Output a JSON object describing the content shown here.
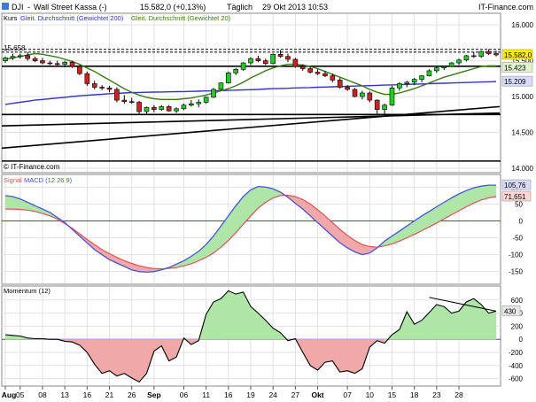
{
  "header": {
    "symbol": "DJI",
    "title": "Wall Street Kassa (-)",
    "quote": "15.582,0 (+0,13%)",
    "interval": "Täglich",
    "datetime": "29 Okt 2013 10:53",
    "provider": "IT-Finance.com"
  },
  "copyright": "© IT-Finance.com",
  "colors": {
    "bull": "#22cc22",
    "bear": "#cc2222",
    "ma20": "#3a7a12",
    "ma200": "#3333cc",
    "macd": "#4455dd",
    "signal": "#dd5555",
    "fill_pos": "#aee6a8",
    "fill_neg": "#f0a8a8",
    "badge_last": "#ffee00",
    "badge_ma20": "#dff5d0",
    "badge_ma200": "#d8ddff",
    "badge_macd": "#d8ddff",
    "badge_signal": "#ffd6d6",
    "badge_momentum": "#e8e8e8"
  },
  "chart_data": [
    {
      "type": "candlestick",
      "legend": [
        "Kurs",
        "Gleit. Durchschnitt (Gewichtet 200)",
        "Gleit. Durchschnitt (Gewichtet 20)"
      ],
      "ylim": [
        13950,
        16150
      ],
      "y_ticks": [
        14000,
        14500,
        15000,
        15500,
        16000
      ],
      "y_tick_labels": [
        "14.000",
        "14.500",
        "15.000",
        "15.500",
        "16.000"
      ],
      "x_tick_labels": [
        "Aug",
        "05",
        "08",
        "13",
        "16",
        "21",
        "26",
        "Sep",
        "06",
        "11",
        "16",
        "19",
        "24",
        "27",
        "Okt",
        "07",
        "10",
        "15",
        "18",
        "23",
        "28"
      ],
      "x_tick_index": [
        0,
        2,
        5,
        8,
        11,
        14,
        17,
        20,
        24,
        27,
        30,
        33,
        36,
        39,
        42,
        46,
        49,
        52,
        55,
        58,
        61
      ],
      "bold_tick_index": [
        0,
        20,
        42
      ],
      "ohlc": [
        [
          15500,
          15560,
          15470,
          15540
        ],
        [
          15540,
          15600,
          15510,
          15560
        ],
        [
          15560,
          15600,
          15530,
          15570
        ],
        [
          15570,
          15620,
          15500,
          15530
        ],
        [
          15530,
          15560,
          15480,
          15500
        ],
        [
          15500,
          15540,
          15450,
          15470
        ],
        [
          15470,
          15500,
          15440,
          15460
        ],
        [
          15460,
          15500,
          15420,
          15450
        ],
        [
          15450,
          15500,
          15410,
          15480
        ],
        [
          15480,
          15500,
          15400,
          15420
        ],
        [
          15420,
          15440,
          15300,
          15320
        ],
        [
          15320,
          15350,
          15150,
          15180
        ],
        [
          15180,
          15220,
          15100,
          15130
        ],
        [
          15130,
          15160,
          15090,
          15120
        ],
        [
          15120,
          15150,
          15060,
          15100
        ],
        [
          15100,
          15130,
          14920,
          14950
        ],
        [
          14950,
          15020,
          14900,
          14930
        ],
        [
          14930,
          14980,
          14900,
          14920
        ],
        [
          14920,
          14940,
          14760,
          14790
        ],
        [
          14790,
          14860,
          14750,
          14850
        ],
        [
          14850,
          14880,
          14780,
          14820
        ],
        [
          14820,
          14880,
          14800,
          14860
        ],
        [
          14860,
          14880,
          14790,
          14800
        ],
        [
          14800,
          14850,
          14770,
          14830
        ],
        [
          14830,
          14900,
          14810,
          14880
        ],
        [
          14880,
          14950,
          14860,
          14900
        ],
        [
          14900,
          14960,
          14850,
          14920
        ],
        [
          14920,
          15000,
          14900,
          14990
        ],
        [
          14990,
          15120,
          14980,
          15100
        ],
        [
          15100,
          15200,
          15080,
          15190
        ],
        [
          15190,
          15350,
          15180,
          15330
        ],
        [
          15330,
          15400,
          15300,
          15380
        ],
        [
          15380,
          15480,
          15360,
          15470
        ],
        [
          15470,
          15550,
          15440,
          15530
        ],
        [
          15530,
          15570,
          15480,
          15500
        ],
        [
          15500,
          15530,
          15440,
          15460
        ],
        [
          15460,
          15600,
          15450,
          15590
        ],
        [
          15590,
          15650,
          15540,
          15560
        ],
        [
          15560,
          15600,
          15480,
          15520
        ],
        [
          15520,
          15540,
          15400,
          15420
        ],
        [
          15420,
          15450,
          15360,
          15390
        ],
        [
          15390,
          15420,
          15320,
          15340
        ],
        [
          15340,
          15380,
          15300,
          15320
        ],
        [
          15320,
          15360,
          15270,
          15290
        ],
        [
          15290,
          15320,
          15200,
          15230
        ],
        [
          15230,
          15260,
          15110,
          15130
        ],
        [
          15130,
          15160,
          15080,
          15100
        ],
        [
          15100,
          15120,
          14990,
          15000
        ],
        [
          15000,
          15080,
          14960,
          15050
        ],
        [
          15050,
          15070,
          14920,
          14950
        ],
        [
          14950,
          14960,
          14750,
          14820
        ],
        [
          14820,
          14900,
          14720,
          14880
        ],
        [
          14880,
          15150,
          14870,
          15120
        ],
        [
          15120,
          15200,
          15080,
          15180
        ],
        [
          15180,
          15220,
          15130,
          15200
        ],
        [
          15200,
          15260,
          15160,
          15240
        ],
        [
          15240,
          15300,
          15200,
          15290
        ],
        [
          15290,
          15380,
          15280,
          15360
        ],
        [
          15360,
          15420,
          15330,
          15400
        ],
        [
          15400,
          15430,
          15370,
          15420
        ],
        [
          15420,
          15480,
          15410,
          15470
        ],
        [
          15470,
          15530,
          15440,
          15510
        ],
        [
          15510,
          15580,
          15490,
          15570
        ],
        [
          15570,
          15620,
          15540,
          15560
        ],
        [
          15560,
          15640,
          15540,
          15630
        ],
        [
          15630,
          15660,
          15580,
          15600
        ],
        [
          15600,
          15640,
          15560,
          15582
        ]
      ],
      "ma20": [
        15520,
        15540,
        15560,
        15580,
        15600,
        15590,
        15570,
        15550,
        15520,
        15490,
        15450,
        15400,
        15350,
        15290,
        15230,
        15170,
        15110,
        15060,
        15020,
        14990,
        14970,
        14960,
        14960,
        14960,
        14970,
        14980,
        15000,
        15020,
        15050,
        15080,
        15110,
        15150,
        15200,
        15260,
        15310,
        15360,
        15400,
        15430,
        15450,
        15450,
        15440,
        15420,
        15390,
        15350,
        15310,
        15270,
        15230,
        15190,
        15150,
        15100,
        15060,
        15030,
        15030,
        15050,
        15080,
        15110,
        15150,
        15190,
        15230,
        15270,
        15300,
        15330,
        15360,
        15390,
        15420,
        15430,
        15430
      ],
      "ma200": [
        14890,
        14905,
        14920,
        14935,
        14950,
        14960,
        14970,
        14980,
        14990,
        15000,
        15010,
        15018,
        15025,
        15032,
        15040,
        15045,
        15050,
        15055,
        15058,
        15060,
        15062,
        15064,
        15066,
        15068,
        15070,
        15072,
        15075,
        15078,
        15080,
        15083,
        15086,
        15090,
        15093,
        15096,
        15100,
        15105,
        15110,
        15113,
        15116,
        15120,
        15123,
        15126,
        15130,
        15133,
        15136,
        15140,
        15143,
        15146,
        15150,
        15153,
        15156,
        15160,
        15163,
        15166,
        15170,
        15173,
        15176,
        15180,
        15183,
        15186,
        15190,
        15193,
        15196,
        15200,
        15203,
        15206,
        15209
      ],
      "resistance_label": "15.658",
      "resistance": 15658,
      "horizontal_levels": [
        15658,
        15620,
        15423,
        14750,
        14100
      ],
      "trendlines": [
        [
          [
            0,
            14280
          ],
          [
            66,
            14860
          ]
        ],
        [
          [
            0,
            14590
          ],
          [
            66,
            14770
          ]
        ]
      ],
      "last_values": {
        "close": "15.582,0",
        "ma20": "15.423",
        "ma200": "15.209"
      }
    },
    {
      "type": "line",
      "legend": [
        "Signal",
        "MACD (12 26 9)"
      ],
      "ylim": [
        -185,
        135
      ],
      "y_ticks": [
        -150,
        -100,
        -50,
        0,
        50,
        100
      ],
      "y_tick_labels": [
        "-150",
        "-100",
        "-50",
        "0",
        "50",
        "100"
      ],
      "macd": [
        75,
        72,
        65,
        55,
        45,
        35,
        25,
        10,
        -5,
        -25,
        -45,
        -65,
        -85,
        -100,
        -115,
        -125,
        -135,
        -145,
        -150,
        -152,
        -150,
        -145,
        -138,
        -128,
        -118,
        -105,
        -90,
        -70,
        -45,
        -15,
        15,
        45,
        72,
        92,
        102,
        100,
        95,
        85,
        70,
        52,
        35,
        15,
        -5,
        -25,
        -45,
        -65,
        -80,
        -92,
        -100,
        -95,
        -80,
        -60,
        -45,
        -30,
        -15,
        0,
        15,
        28,
        42,
        55,
        68,
        80,
        90,
        98,
        103,
        106,
        106
      ],
      "signal": [
        35,
        35,
        34,
        32,
        28,
        22,
        15,
        5,
        -8,
        -22,
        -38,
        -55,
        -70,
        -85,
        -97,
        -108,
        -118,
        -126,
        -133,
        -138,
        -141,
        -142,
        -141,
        -138,
        -133,
        -127,
        -118,
        -108,
        -95,
        -78,
        -58,
        -35,
        -10,
        15,
        38,
        55,
        68,
        75,
        76,
        72,
        63,
        50,
        33,
        15,
        -5,
        -25,
        -43,
        -58,
        -70,
        -76,
        -78,
        -74,
        -68,
        -60,
        -50,
        -40,
        -29,
        -18,
        -6,
        6,
        18,
        30,
        42,
        53,
        62,
        68,
        72
      ],
      "last_values": {
        "macd": "105,76",
        "signal": "71,651"
      }
    },
    {
      "type": "area",
      "legend": [
        "Momentum (12)"
      ],
      "ylim": [
        -700,
        800
      ],
      "y_ticks": [
        -600,
        -400,
        -200,
        0,
        200,
        400,
        600
      ],
      "y_tick_labels": [
        "-600",
        "-400",
        "-200",
        "0",
        "200",
        "400",
        "600"
      ],
      "values": [
        70,
        60,
        50,
        20,
        10,
        10,
        0,
        0,
        -30,
        -40,
        -90,
        -200,
        -380,
        -520,
        -480,
        -560,
        -520,
        -590,
        -650,
        -520,
        -180,
        -100,
        -330,
        -270,
        20,
        -80,
        -20,
        380,
        570,
        620,
        740,
        690,
        720,
        500,
        400,
        290,
        170,
        100,
        -20,
        10,
        -200,
        -400,
        -470,
        -350,
        -330,
        -500,
        -480,
        -520,
        -450,
        -120,
        -20,
        -60,
        70,
        150,
        420,
        230,
        290,
        410,
        530,
        500,
        400,
        430,
        570,
        620,
        530,
        400,
        430
      ],
      "trendline": [
        [
          57,
          640
        ],
        [
          66,
          430
        ]
      ],
      "last_value": "430"
    }
  ]
}
